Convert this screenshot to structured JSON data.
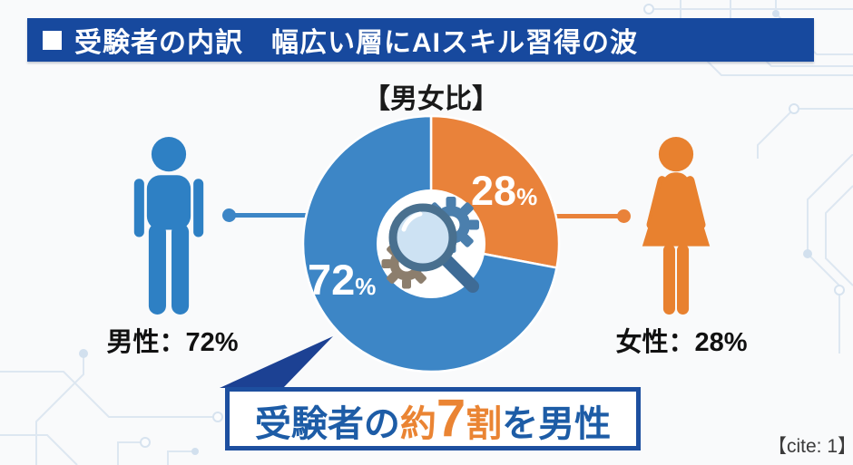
{
  "header": {
    "bullet": "■",
    "title": "受験者の内訳　幅広い層にAIスキル習得の波",
    "bg_color": "#17499e"
  },
  "chart_data": {
    "type": "pie",
    "title": "【男女比】",
    "direction": "clockwise",
    "start_angle": "top",
    "donut": true,
    "center_icon": "magnifier-and-gears",
    "slices": [
      {
        "label": "女性",
        "value": 28,
        "color": "#e9823a",
        "number": "28",
        "unit": "%"
      },
      {
        "label": "男性",
        "value": 72,
        "color": "#3d86c6",
        "number": "72",
        "unit": "%"
      }
    ]
  },
  "figures": {
    "male": {
      "caption": "男性：72%",
      "color": "#2e80c4",
      "pictogram": "male-person"
    },
    "female": {
      "caption": "女性：28%",
      "color": "#e8812f",
      "pictogram": "female-person"
    }
  },
  "callout": {
    "part_blue1": "受験者の",
    "part_orange1": "約",
    "part_orange_big": "7",
    "part_orange2": "割",
    "part_blue2": "を男性",
    "border_color": "#1d4f9f"
  },
  "footer": {
    "cite": "【cite: 1】"
  }
}
